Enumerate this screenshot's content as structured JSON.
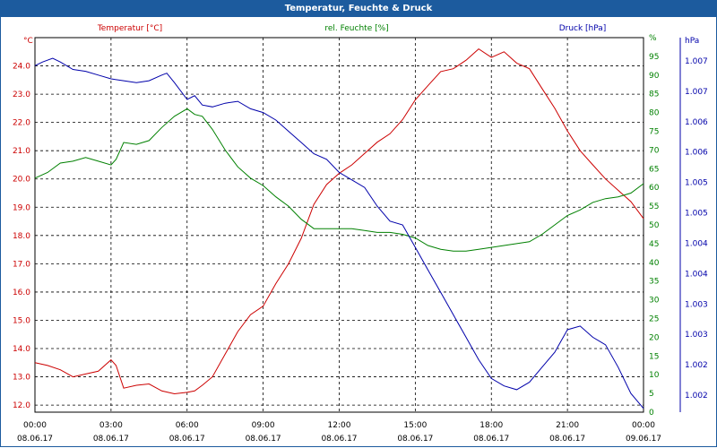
{
  "chart_data": {
    "type": "line",
    "title": "Temperatur, Feuchte & Druck",
    "x_ticks": [
      {
        "time": "00:00",
        "date": "08.06.17"
      },
      {
        "time": "03:00",
        "date": "08.06.17"
      },
      {
        "time": "06:00",
        "date": "08.06.17"
      },
      {
        "time": "09:00",
        "date": "08.06.17"
      },
      {
        "time": "12:00",
        "date": "08.06.17"
      },
      {
        "time": "15:00",
        "date": "08.06.17"
      },
      {
        "time": "18:00",
        "date": "08.06.17"
      },
      {
        "time": "21:00",
        "date": "08.06.17"
      },
      {
        "time": "00:00",
        "date": "09.06.17"
      }
    ],
    "x_range_hours": [
      0,
      24
    ],
    "axes": {
      "temperature": {
        "label": "Temperatur [°C]",
        "unit": "°C",
        "color": "#cc0000",
        "range": [
          11.75,
          25.0
        ],
        "ticks": [
          "12.0",
          "13.0",
          "14.0",
          "15.0",
          "16.0",
          "17.0",
          "18.0",
          "19.0",
          "20.0",
          "21.0",
          "22.0",
          "23.0",
          "24.0"
        ]
      },
      "humidity": {
        "label": "rel. Feuchte [%]",
        "unit": "%",
        "color": "#008000",
        "range": [
          0,
          100
        ],
        "ticks": [
          "0",
          "5",
          "10",
          "15",
          "20",
          "25",
          "30",
          "35",
          "40",
          "45",
          "50",
          "55",
          "60",
          "65",
          "70",
          "75",
          "80",
          "85",
          "90",
          "95",
          "%"
        ]
      },
      "pressure": {
        "label": "Druck [hPa]",
        "unit": "hPa",
        "color": "#0000aa",
        "ticks": [
          "1.007",
          "1.007",
          "1.006",
          "1.006",
          "1.005",
          "1.005",
          "1.004",
          "1.004",
          "1.003",
          "1.003",
          "1.002",
          "1.002"
        ]
      }
    },
    "series": [
      {
        "name": "Temperatur [°C]",
        "axis": "temperature",
        "color": "#cc0000",
        "points": [
          [
            0,
            13.5
          ],
          [
            0.5,
            13.4
          ],
          [
            1,
            13.25
          ],
          [
            1.5,
            13.0
          ],
          [
            2,
            13.1
          ],
          [
            2.5,
            13.2
          ],
          [
            3,
            13.6
          ],
          [
            3.2,
            13.4
          ],
          [
            3.5,
            12.6
          ],
          [
            4,
            12.7
          ],
          [
            4.5,
            12.75
          ],
          [
            5,
            12.5
          ],
          [
            5.5,
            12.4
          ],
          [
            6,
            12.45
          ],
          [
            6.3,
            12.5
          ],
          [
            6.6,
            12.7
          ],
          [
            7,
            13.0
          ],
          [
            7.5,
            13.8
          ],
          [
            8,
            14.6
          ],
          [
            8.5,
            15.2
          ],
          [
            9,
            15.5
          ],
          [
            9.5,
            16.3
          ],
          [
            10,
            17.0
          ],
          [
            10.5,
            17.9
          ],
          [
            11,
            19.1
          ],
          [
            11.5,
            19.8
          ],
          [
            12,
            20.2
          ],
          [
            12.5,
            20.5
          ],
          [
            13,
            20.9
          ],
          [
            13.5,
            21.3
          ],
          [
            14,
            21.6
          ],
          [
            14.5,
            22.1
          ],
          [
            15,
            22.8
          ],
          [
            15.5,
            23.3
          ],
          [
            16,
            23.8
          ],
          [
            16.5,
            23.9
          ],
          [
            17,
            24.2
          ],
          [
            17.5,
            24.6
          ],
          [
            18,
            24.3
          ],
          [
            18.5,
            24.5
          ],
          [
            19,
            24.1
          ],
          [
            19.5,
            23.9
          ],
          [
            20,
            23.2
          ],
          [
            20.5,
            22.5
          ],
          [
            21,
            21.7
          ],
          [
            21.5,
            21.0
          ],
          [
            22,
            20.5
          ],
          [
            22.5,
            20.0
          ],
          [
            23,
            19.6
          ],
          [
            23.5,
            19.2
          ],
          [
            24,
            18.6
          ]
        ]
      },
      {
        "name": "rel. Feuchte [%]",
        "axis": "humidity",
        "color": "#008000",
        "points": [
          [
            0,
            62.5
          ],
          [
            0.5,
            64.0
          ],
          [
            1,
            66.5
          ],
          [
            1.5,
            67.0
          ],
          [
            2,
            68.0
          ],
          [
            2.5,
            67.0
          ],
          [
            3,
            66.0
          ],
          [
            3.2,
            67.5
          ],
          [
            3.5,
            72.0
          ],
          [
            4,
            71.5
          ],
          [
            4.5,
            72.5
          ],
          [
            5,
            76.0
          ],
          [
            5.5,
            79.0
          ],
          [
            6,
            81.0
          ],
          [
            6.3,
            79.5
          ],
          [
            6.6,
            79.0
          ],
          [
            7,
            75.5
          ],
          [
            7.5,
            70.0
          ],
          [
            8,
            65.5
          ],
          [
            8.5,
            62.5
          ],
          [
            9,
            60.5
          ],
          [
            9.5,
            57.5
          ],
          [
            10,
            55.0
          ],
          [
            10.5,
            51.5
          ],
          [
            11,
            49.0
          ],
          [
            11.5,
            49.0
          ],
          [
            12,
            49.0
          ],
          [
            12.5,
            49.0
          ],
          [
            13,
            48.5
          ],
          [
            13.5,
            48.0
          ],
          [
            14,
            48.0
          ],
          [
            14.5,
            47.5
          ],
          [
            15,
            46.5
          ],
          [
            15.5,
            44.5
          ],
          [
            16,
            43.5
          ],
          [
            16.5,
            43.0
          ],
          [
            17,
            43.0
          ],
          [
            17.5,
            43.5
          ],
          [
            18,
            44.0
          ],
          [
            18.5,
            44.5
          ],
          [
            19,
            45.0
          ],
          [
            19.5,
            45.5
          ],
          [
            20,
            47.5
          ],
          [
            20.5,
            50.0
          ],
          [
            21,
            52.5
          ],
          [
            21.5,
            54.0
          ],
          [
            22,
            56.0
          ],
          [
            22.5,
            57.0
          ],
          [
            23,
            57.5
          ],
          [
            23.5,
            58.5
          ],
          [
            24,
            61.0
          ]
        ]
      }
    ],
    "pressure_series": {
      "name": "Druck [hPa]",
      "axis": "pressure",
      "color": "#0000aa",
      "unit": "normalized 0-1 of right axis",
      "points": [
        [
          0,
          0.925
        ],
        [
          0.3,
          0.935
        ],
        [
          0.7,
          0.945
        ],
        [
          1,
          0.935
        ],
        [
          1.5,
          0.915
        ],
        [
          2,
          0.91
        ],
        [
          2.5,
          0.9
        ],
        [
          3,
          0.89
        ],
        [
          3.5,
          0.885
        ],
        [
          4,
          0.88
        ],
        [
          4.5,
          0.885
        ],
        [
          5,
          0.9
        ],
        [
          5.2,
          0.905
        ],
        [
          5.5,
          0.88
        ],
        [
          6,
          0.835
        ],
        [
          6.3,
          0.845
        ],
        [
          6.6,
          0.82
        ],
        [
          7,
          0.815
        ],
        [
          7.5,
          0.825
        ],
        [
          8,
          0.83
        ],
        [
          8.5,
          0.81
        ],
        [
          9,
          0.8
        ],
        [
          9.5,
          0.78
        ],
        [
          10,
          0.75
        ],
        [
          10.5,
          0.72
        ],
        [
          11,
          0.69
        ],
        [
          11.5,
          0.675
        ],
        [
          12,
          0.64
        ],
        [
          12.5,
          0.62
        ],
        [
          13,
          0.6
        ],
        [
          13.5,
          0.55
        ],
        [
          14,
          0.51
        ],
        [
          14.5,
          0.5
        ],
        [
          15,
          0.44
        ],
        [
          15.5,
          0.38
        ],
        [
          16,
          0.32
        ],
        [
          16.5,
          0.26
        ],
        [
          17,
          0.2
        ],
        [
          17.5,
          0.14
        ],
        [
          18,
          0.09
        ],
        [
          18.5,
          0.07
        ],
        [
          19,
          0.06
        ],
        [
          19.5,
          0.08
        ],
        [
          20,
          0.12
        ],
        [
          20.5,
          0.16
        ],
        [
          21,
          0.22
        ],
        [
          21.5,
          0.23
        ],
        [
          22,
          0.2
        ],
        [
          22.5,
          0.18
        ],
        [
          23,
          0.12
        ],
        [
          23.5,
          0.05
        ],
        [
          24,
          0.01
        ]
      ]
    }
  }
}
